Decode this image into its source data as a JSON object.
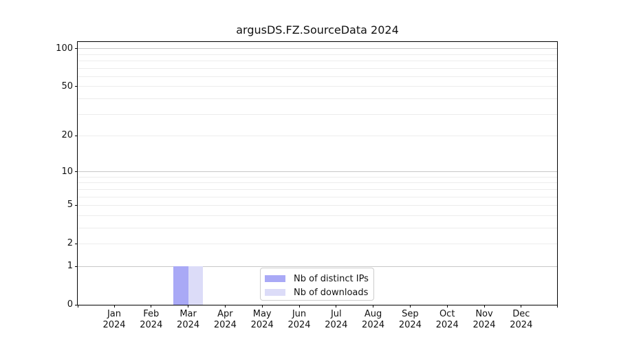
{
  "chart_data": {
    "type": "bar",
    "title": "argusDS.FZ.SourceData 2024",
    "categories": [
      "Jan",
      "Feb",
      "Mar",
      "Apr",
      "May",
      "Jun",
      "Jul",
      "Aug",
      "Sep",
      "Oct",
      "Nov",
      "Dec"
    ],
    "category_year": "2024",
    "series": [
      {
        "name": "Nb of distinct IPs",
        "color": "#a9a9f6",
        "values": [
          0,
          0,
          1,
          0,
          0,
          0,
          0,
          0,
          0,
          0,
          0,
          0
        ]
      },
      {
        "name": "Nb of downloads",
        "color": "#dcdcf8",
        "values": [
          0,
          0,
          1,
          0,
          0,
          0,
          0,
          0,
          0,
          0,
          0,
          0
        ]
      }
    ],
    "xlabel": "",
    "ylabel": "",
    "yscale": "log1p",
    "ylim": [
      0,
      113
    ],
    "yticks": [
      0,
      1,
      2,
      5,
      10,
      20,
      50,
      100
    ],
    "grid": {
      "major_ticks": [
        1,
        10,
        100
      ],
      "minor_ticks": [
        2,
        3,
        4,
        5,
        6,
        7,
        8,
        9,
        20,
        30,
        40,
        50,
        60,
        70,
        80,
        90
      ]
    },
    "legend_position": "lower center inside"
  }
}
